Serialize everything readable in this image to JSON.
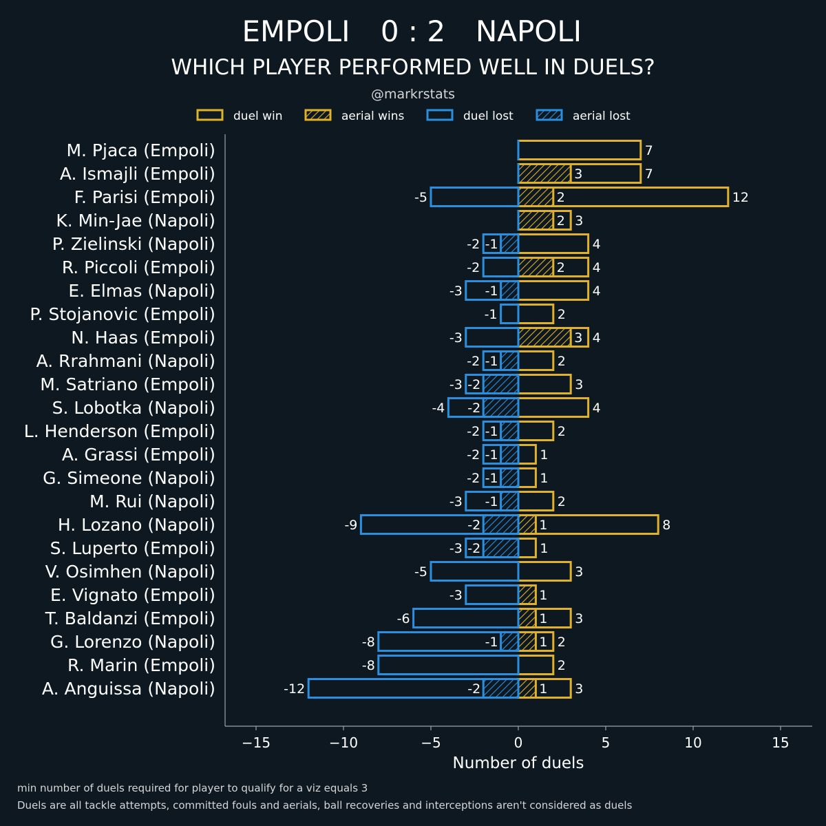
{
  "header": {
    "home_team": "EMPOLI",
    "score": "0 : 2",
    "away_team": "NAPOLI",
    "subtitle": "WHICH PLAYER PERFORMED WELL IN DUELS?",
    "handle": "@markrstats"
  },
  "legend": [
    {
      "label": "duel win",
      "kind": "win",
      "hatched": false
    },
    {
      "label": "aerial wins",
      "kind": "win",
      "hatched": true
    },
    {
      "label": "duel lost",
      "kind": "lost",
      "hatched": false
    },
    {
      "label": "aerial lost",
      "kind": "lost",
      "hatched": true
    }
  ],
  "footnotes": [
    "min number of duels required for player to qualify for a viz equals 3",
    "Duels are all tackle attempts, committed fouls and aerials, ball recoveries and interceptions aren't considered as duels"
  ],
  "colors": {
    "background": "#0e1821",
    "win": "#e0b22b",
    "lost": "#2b8fe0",
    "axis": "#9aa4ad"
  },
  "chart_data": {
    "type": "bar",
    "orientation": "horizontal",
    "xlabel": "Number of duels",
    "xlim": [
      -17,
      17
    ],
    "xticks": [
      -15,
      -10,
      -5,
      0,
      5,
      10,
      15
    ],
    "xtick_labels": [
      "−15",
      "−10",
      "−5",
      "0",
      "5",
      "10",
      "15"
    ],
    "players": [
      {
        "name": "M. Pjaca (Empoli)",
        "duel_win": 7,
        "aerial_win": null,
        "duel_lost": null,
        "aerial_lost": null
      },
      {
        "name": "A. Ismajli (Empoli)",
        "duel_win": 7,
        "aerial_win": 3,
        "duel_lost": null,
        "aerial_lost": null
      },
      {
        "name": "F. Parisi (Empoli)",
        "duel_win": 12,
        "aerial_win": 2,
        "duel_lost": -5,
        "aerial_lost": null
      },
      {
        "name": "K. Min-Jae (Napoli)",
        "duel_win": 3,
        "aerial_win": 2,
        "duel_lost": null,
        "aerial_lost": null
      },
      {
        "name": "P. Zielinski (Napoli)",
        "duel_win": 4,
        "aerial_win": null,
        "duel_lost": -2,
        "aerial_lost": -1
      },
      {
        "name": "R. Piccoli (Empoli)",
        "duel_win": 4,
        "aerial_win": 2,
        "duel_lost": -2,
        "aerial_lost": null
      },
      {
        "name": "E. Elmas (Napoli)",
        "duel_win": 4,
        "aerial_win": null,
        "duel_lost": -3,
        "aerial_lost": -1
      },
      {
        "name": "P. Stojanovic (Empoli)",
        "duel_win": 2,
        "aerial_win": null,
        "duel_lost": -1,
        "aerial_lost": null
      },
      {
        "name": "N. Haas (Empoli)",
        "duel_win": 4,
        "aerial_win": 3,
        "duel_lost": -3,
        "aerial_lost": null
      },
      {
        "name": "A. Rrahmani (Napoli)",
        "duel_win": 2,
        "aerial_win": null,
        "duel_lost": -2,
        "aerial_lost": -1
      },
      {
        "name": "M. Satriano (Empoli)",
        "duel_win": 3,
        "aerial_win": null,
        "duel_lost": -3,
        "aerial_lost": -2
      },
      {
        "name": "S. Lobotka (Napoli)",
        "duel_win": 4,
        "aerial_win": null,
        "duel_lost": -4,
        "aerial_lost": -2
      },
      {
        "name": "L. Henderson (Empoli)",
        "duel_win": 2,
        "aerial_win": null,
        "duel_lost": -2,
        "aerial_lost": -1
      },
      {
        "name": "A. Grassi (Empoli)",
        "duel_win": 1,
        "aerial_win": null,
        "duel_lost": -2,
        "aerial_lost": -1
      },
      {
        "name": "G. Simeone (Napoli)",
        "duel_win": 1,
        "aerial_win": null,
        "duel_lost": -2,
        "aerial_lost": -1
      },
      {
        "name": "M. Rui (Napoli)",
        "duel_win": 2,
        "aerial_win": null,
        "duel_lost": -3,
        "aerial_lost": -1
      },
      {
        "name": "H. Lozano (Napoli)",
        "duel_win": 8,
        "aerial_win": 1,
        "duel_lost": -9,
        "aerial_lost": -2
      },
      {
        "name": "S. Luperto (Empoli)",
        "duel_win": 1,
        "aerial_win": null,
        "duel_lost": -3,
        "aerial_lost": -2
      },
      {
        "name": "V. Osimhen (Napoli)",
        "duel_win": 3,
        "aerial_win": null,
        "duel_lost": -5,
        "aerial_lost": null
      },
      {
        "name": "E. Vignato (Empoli)",
        "duel_win": null,
        "aerial_win": 1,
        "duel_lost": -3,
        "aerial_lost": null
      },
      {
        "name": "T. Baldanzi (Empoli)",
        "duel_win": 3,
        "aerial_win": 1,
        "duel_lost": -6,
        "aerial_lost": null
      },
      {
        "name": "G. Lorenzo (Napoli)",
        "duel_win": 2,
        "aerial_win": 1,
        "duel_lost": -8,
        "aerial_lost": -1
      },
      {
        "name": "R. Marin (Empoli)",
        "duel_win": 2,
        "aerial_win": null,
        "duel_lost": -8,
        "aerial_lost": null
      },
      {
        "name": "A. Anguissa (Napoli)",
        "duel_win": 3,
        "aerial_win": 1,
        "duel_lost": -12,
        "aerial_lost": -2
      }
    ]
  }
}
